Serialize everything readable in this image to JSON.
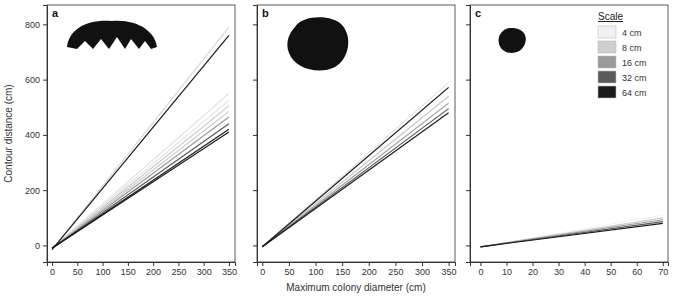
{
  "chart_data": [
    {
      "type": "line",
      "title": "a",
      "ylabel": "Contour distance (cm)",
      "x": [
        0,
        350
      ],
      "xlim": [
        -10,
        362
      ],
      "xticks": [
        0,
        50,
        100,
        150,
        200,
        250,
        300,
        350
      ],
      "ylim": [
        -60,
        870
      ],
      "yticks": [
        0,
        200,
        400,
        600,
        800
      ],
      "series": [
        {
          "color": "#d9d9d9",
          "values": [
            -15,
            790
          ]
        },
        {
          "color": "#e3e3e3",
          "values": [
            -10,
            550
          ]
        },
        {
          "color": "#e3e3e3",
          "values": [
            -10,
            525
          ]
        },
        {
          "color": "#c8c8c8",
          "values": [
            -10,
            505
          ]
        },
        {
          "color": "#c8c8c8",
          "values": [
            -10,
            485
          ]
        },
        {
          "color": "#9a9a9a",
          "values": [
            -10,
            465
          ]
        },
        {
          "color": "#5a5a5a",
          "values": [
            -10,
            440
          ]
        },
        {
          "color": "#1a1a1a",
          "values": [
            -10,
            420
          ]
        },
        {
          "color": "#1a1a1a",
          "values": [
            -10,
            410
          ]
        },
        {
          "color": "#1a1a1a",
          "values": [
            -15,
            760
          ]
        }
      ]
    },
    {
      "type": "line",
      "title": "b",
      "xlabel": "Maximum colony diameter (cm)",
      "x": [
        0,
        350
      ],
      "xlim": [
        -10,
        362
      ],
      "xticks": [
        0,
        50,
        100,
        150,
        200,
        250,
        300,
        350
      ],
      "ylim": [
        -60,
        870
      ],
      "yticks": [
        0,
        200,
        400,
        600,
        800
      ],
      "tick_labels": "x",
      "series": [
        {
          "color": "#e3e3e3",
          "values": [
            -5,
            590
          ]
        },
        {
          "color": "#e3e3e3",
          "values": [
            -5,
            570
          ]
        },
        {
          "color": "#c8c8c8",
          "values": [
            -5,
            540
          ]
        },
        {
          "color": "#9a9a9a",
          "values": [
            -5,
            515
          ]
        },
        {
          "color": "#5a5a5a",
          "values": [
            -5,
            495
          ]
        },
        {
          "color": "#1a1a1a",
          "values": [
            -5,
            480
          ]
        },
        {
          "color": "#1a1a1a",
          "values": [
            -5,
            572
          ]
        }
      ]
    },
    {
      "type": "line",
      "title": "c",
      "legend": "top-right",
      "legend_title": "Scale",
      "x": [
        0,
        70
      ],
      "xlim": [
        -4,
        72
      ],
      "xticks": [
        0,
        10,
        20,
        30,
        40,
        50,
        60,
        70
      ],
      "ylim": [
        -60,
        870
      ],
      "yticks": [
        0,
        200,
        400,
        600,
        800
      ],
      "tick_labels": "x",
      "series": [
        {
          "name": "4 cm",
          "color": "#f2f2f2",
          "values": [
            -5,
            110
          ]
        },
        {
          "name": "8 cm",
          "color": "#cfcfcf",
          "values": [
            -5,
            100
          ]
        },
        {
          "name": "16 cm",
          "color": "#9a9a9a",
          "values": [
            -5,
            93
          ]
        },
        {
          "name": "32 cm",
          "color": "#5a5a5a",
          "values": [
            -5,
            86
          ]
        },
        {
          "name": "64 cm",
          "color": "#1a1a1a",
          "values": [
            -5,
            80
          ]
        }
      ]
    }
  ]
}
